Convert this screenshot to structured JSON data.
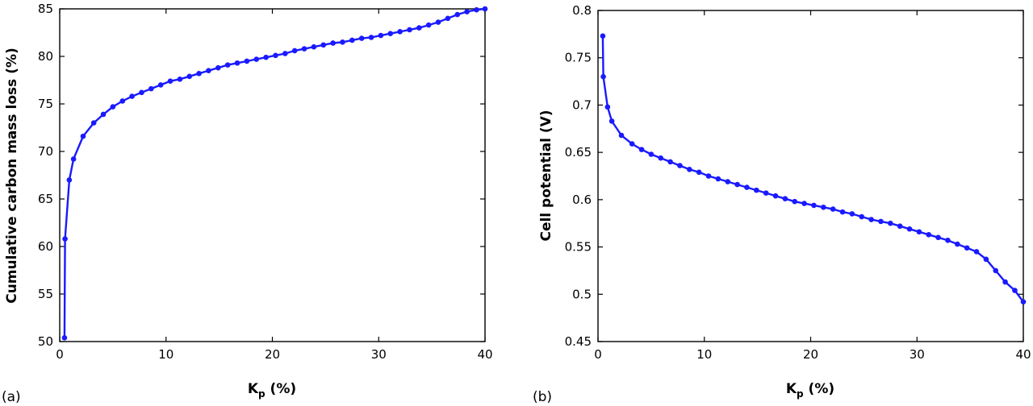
{
  "chart_data": [
    {
      "type": "line",
      "panel_label": "(a)",
      "xlabel": "K_p (%)",
      "xlabel_main": "K",
      "xlabel_sub": "p",
      "xlabel_suffix": " (%)",
      "ylabel": "Cumulative carbon mass loss (%)",
      "xlim": [
        0,
        40
      ],
      "ylim": [
        50,
        85
      ],
      "xticks": [
        "0",
        "10",
        "20",
        "30",
        "40"
      ],
      "yticks": [
        "50",
        "55",
        "60",
        "65",
        "70",
        "75",
        "80",
        "85"
      ],
      "color": "#1a1aff",
      "series": [
        {
          "x": [
            0.45,
            0.5,
            0.9,
            1.3,
            2.2,
            3.2,
            4.1,
            5.0,
            5.9,
            6.8,
            7.7,
            8.6,
            9.5,
            10.4,
            11.3,
            12.2,
            13.1,
            14.0,
            14.9,
            15.8,
            16.7,
            17.6,
            18.5,
            19.4,
            20.3,
            21.2,
            22.1,
            23.0,
            23.9,
            24.8,
            25.7,
            26.6,
            27.5,
            28.4,
            29.3,
            30.2,
            31.1,
            32.0,
            32.9,
            33.8,
            34.7,
            35.6,
            36.5,
            37.4,
            38.3,
            39.2,
            40.0
          ],
          "y": [
            50.4,
            60.8,
            67.0,
            69.2,
            71.6,
            73.0,
            73.9,
            74.7,
            75.3,
            75.8,
            76.2,
            76.6,
            77.0,
            77.4,
            77.6,
            77.9,
            78.2,
            78.5,
            78.8,
            79.1,
            79.3,
            79.5,
            79.7,
            79.9,
            80.1,
            80.3,
            80.6,
            80.8,
            81.0,
            81.2,
            81.4,
            81.5,
            81.7,
            81.9,
            82.0,
            82.2,
            82.4,
            82.6,
            82.8,
            83.0,
            83.3,
            83.6,
            84.0,
            84.4,
            84.7,
            84.9,
            85.0
          ]
        }
      ]
    },
    {
      "type": "line",
      "panel_label": "(b)",
      "xlabel": "K_p (%)",
      "xlabel_main": "K",
      "xlabel_sub": "p",
      "xlabel_suffix": " (%)",
      "ylabel": "Cell potential (V)",
      "xlim": [
        0,
        40
      ],
      "ylim": [
        0.45,
        0.8
      ],
      "xticks": [
        "0",
        "10",
        "20",
        "30",
        "40"
      ],
      "yticks": [
        "0.45",
        "0.5",
        "0.55",
        "0.6",
        "0.65",
        "0.7",
        "0.75",
        "0.8"
      ],
      "color": "#1a1aff",
      "series": [
        {
          "x": [
            0.45,
            0.5,
            0.9,
            1.3,
            2.2,
            3.2,
            4.1,
            5.0,
            5.9,
            6.8,
            7.7,
            8.6,
            9.5,
            10.4,
            11.3,
            12.2,
            13.1,
            14.0,
            14.9,
            15.8,
            16.7,
            17.6,
            18.5,
            19.4,
            20.3,
            21.2,
            22.1,
            23.0,
            23.9,
            24.8,
            25.7,
            26.6,
            27.5,
            28.4,
            29.3,
            30.2,
            31.1,
            32.0,
            32.9,
            33.8,
            34.7,
            35.6,
            36.5,
            37.4,
            38.3,
            39.2,
            40.0
          ],
          "y": [
            0.773,
            0.73,
            0.698,
            0.683,
            0.668,
            0.659,
            0.653,
            0.648,
            0.644,
            0.64,
            0.636,
            0.632,
            0.629,
            0.625,
            0.622,
            0.619,
            0.616,
            0.613,
            0.61,
            0.607,
            0.604,
            0.601,
            0.598,
            0.596,
            0.594,
            0.592,
            0.59,
            0.587,
            0.585,
            0.582,
            0.579,
            0.577,
            0.575,
            0.572,
            0.569,
            0.566,
            0.563,
            0.56,
            0.557,
            0.553,
            0.549,
            0.545,
            0.537,
            0.525,
            0.513,
            0.504,
            0.492
          ]
        }
      ]
    }
  ]
}
